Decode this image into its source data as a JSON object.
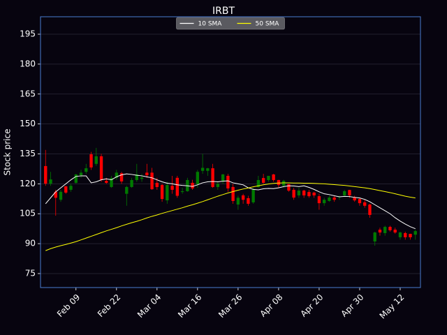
{
  "chart_data": {
    "type": "candlestick",
    "title": "IRBT",
    "ylabel": "Stock price",
    "categories": [
      null,
      null,
      null,
      null,
      null,
      null,
      "Feb 09",
      null,
      null,
      null,
      null,
      null,
      null,
      null,
      "Feb 22",
      null,
      null,
      null,
      null,
      null,
      null,
      null,
      "Mar 04",
      null,
      null,
      null,
      null,
      null,
      null,
      null,
      "Mar 16",
      null,
      null,
      null,
      null,
      null,
      null,
      null,
      "Mar 26",
      null,
      null,
      null,
      null,
      null,
      null,
      null,
      "Apr 08",
      null,
      null,
      null,
      null,
      null,
      null,
      null,
      "Apr 20",
      null,
      null,
      null,
      null,
      null,
      null,
      null,
      "Apr 30",
      null,
      null,
      null,
      null,
      null,
      null,
      null,
      "May 12",
      null,
      null,
      null
    ],
    "open": [
      128.9,
      120.1,
      116,
      112,
      118.7,
      117,
      120.5,
      124.3,
      126,
      134.8,
      130,
      133.8,
      121.5,
      118.4,
      123,
      125.3,
      115,
      118.4,
      121.9,
      122.5,
      125.6,
      125.6,
      120.5,
      119.4,
      111.7,
      119,
      123,
      115.9,
      116.3,
      120.5,
      119.8,
      126.5,
      126.5,
      127.8,
      118.4,
      121.5,
      124,
      118.4,
      109.6,
      114.2,
      112.8,
      110.7,
      118.4,
      122.9,
      121.9,
      124.7,
      121.9,
      119.1,
      119.8,
      117,
      114.2,
      116.6,
      115.9,
      115.6,
      113.8,
      110.3,
      111.4,
      113.1,
      113.3,
      114.2,
      116.9,
      113.1,
      112.4,
      110.7,
      109.6,
      91.1,
      97,
      95.3,
      98.4,
      97,
      93.2,
      95.3,
      94.9,
      94.5
    ],
    "high": [
      137,
      126,
      117,
      117,
      119,
      120,
      125,
      127,
      130,
      136,
      138,
      135,
      123,
      124,
      127,
      126,
      119,
      123,
      130,
      125,
      130,
      128,
      123,
      120,
      121,
      124,
      124,
      118,
      123,
      122,
      127,
      135,
      128,
      130,
      121,
      125,
      125,
      120,
      114,
      115,
      114,
      118,
      124,
      125,
      124,
      125,
      122,
      122,
      120,
      118,
      118,
      117,
      117,
      116,
      115,
      113,
      114,
      114,
      114,
      117,
      117,
      114,
      113,
      112,
      110,
      96,
      98,
      99,
      99,
      98,
      96,
      96,
      95,
      97
    ],
    "low": [
      119,
      119,
      104,
      111,
      115,
      116,
      120,
      123,
      125,
      127,
      129,
      121,
      120,
      118,
      122,
      120,
      109,
      118,
      121,
      121,
      123,
      117,
      117,
      111,
      110,
      115,
      113,
      115,
      116,
      117,
      118,
      125,
      124,
      118,
      117,
      120,
      116,
      110,
      107,
      110,
      109,
      110,
      118,
      120,
      121,
      121,
      118,
      118,
      116,
      112,
      113,
      113,
      113,
      113,
      107,
      109,
      111,
      111,
      112,
      114,
      113,
      111,
      109,
      108,
      103,
      89,
      94,
      94,
      96,
      95,
      92,
      92,
      92,
      92
    ],
    "close": [
      120.1,
      122.2,
      113,
      116,
      115.6,
      119,
      124.7,
      125.6,
      127.8,
      128.2,
      133.8,
      121.9,
      120.5,
      122.9,
      125.6,
      121.2,
      118.4,
      121.9,
      124.7,
      123.1,
      124.3,
      117.3,
      118.4,
      112.4,
      119.4,
      117,
      114,
      116.3,
      121.9,
      117.7,
      126,
      128,
      127.8,
      118.4,
      120,
      124.7,
      117.7,
      111.4,
      113,
      112,
      110,
      117,
      121.9,
      120.5,
      124,
      121.9,
      119.4,
      121.5,
      116.6,
      113.1,
      116.6,
      114.2,
      113.8,
      114.2,
      110.3,
      112,
      113.1,
      112,
      113.6,
      116.3,
      114.2,
      111.7,
      110.3,
      109,
      104.4,
      95.6,
      95.6,
      98.4,
      96.7,
      95.6,
      95.6,
      93.2,
      93.2,
      96.3
    ],
    "up_color": "#007a00",
    "down_color": "#ff0000",
    "series": [
      {
        "name": "10 SMA",
        "color": "#ffffff",
        "values": [
          110,
          113,
          116,
          118,
          120,
          122,
          123.7,
          124,
          124,
          120.5,
          121,
          122,
          122.5,
          122,
          123.5,
          124.5,
          125,
          124.7,
          124.3,
          124,
          123.5,
          123,
          122,
          121,
          120.3,
          120,
          119.5,
          119.2,
          119,
          118.7,
          119.5,
          120.5,
          121,
          121.2,
          121,
          121.3,
          121.5,
          120.5,
          120,
          119.5,
          118,
          117.2,
          117,
          117.5,
          117.7,
          117.6,
          118,
          118.6,
          119,
          118.9,
          118.6,
          119,
          118.2,
          117.2,
          116,
          115,
          114.6,
          114,
          113.5,
          113.7,
          113.6,
          113.2,
          112.9,
          112.2,
          111,
          109.5,
          108,
          106.5,
          105,
          103,
          101.3,
          99.8,
          98.5,
          97.5
        ]
      },
      {
        "name": "50 SMA",
        "color": "#ffff00",
        "values": [
          86.5,
          87.5,
          88.3,
          89,
          89.6,
          90.3,
          91,
          91.9,
          92.8,
          93.7,
          94.6,
          95.5,
          96.4,
          97.2,
          98,
          98.9,
          99.7,
          100.5,
          101.2,
          102,
          102.9,
          103.7,
          104.4,
          105.2,
          105.9,
          106.6,
          107.3,
          108,
          108.8,
          109.5,
          110.3,
          111.1,
          112,
          112.9,
          113.8,
          114.6,
          115.4,
          116.1,
          116.8,
          117.4,
          117.9,
          118.5,
          119,
          119.5,
          119.9,
          120.2,
          120.4,
          120.5,
          120.5,
          120.4,
          120.4,
          120.3,
          120.3,
          120.2,
          120.1,
          120,
          119.8,
          119.6,
          119.4,
          119.2,
          118.9,
          118.6,
          118.3,
          118,
          117.6,
          117.1,
          116.6,
          116.1,
          115.6,
          115,
          114.4,
          113.8,
          113.3,
          112.9
        ]
      }
    ],
    "ylim": [
      68,
      203.75
    ],
    "yticks": [
      75,
      90,
      105,
      120,
      135,
      150,
      165,
      180,
      195
    ],
    "grid": true,
    "legend": "upper center"
  }
}
